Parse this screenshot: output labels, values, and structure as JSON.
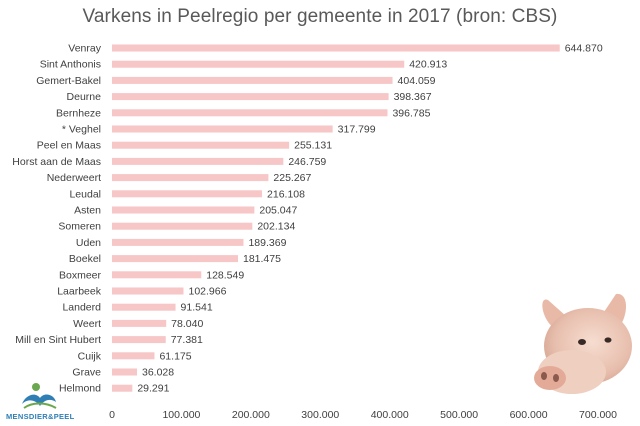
{
  "chart_data": {
    "type": "bar",
    "orientation": "horizontal",
    "title": "Varkens in Peelregio per gemeente in 2017 (bron: CBS)",
    "xlabel": "",
    "ylabel": "",
    "xlim": [
      0,
      700000
    ],
    "grid": false,
    "legend": "none",
    "bar_color": "#f7c6c6",
    "categories": [
      "Venray",
      "Sint Anthonis",
      "Gemert-Bakel",
      "Deurne",
      "Bernheze",
      "* Veghel",
      "Peel en Maas",
      "Horst aan de Maas",
      "Nederweert",
      "Leudal",
      "Asten",
      "Someren",
      "Uden",
      "Boekel",
      "Boxmeer",
      "Laarbeek",
      "Landerd",
      "Weert",
      "Mill en Sint Hubert",
      "Cuijk",
      "Grave",
      "Helmond"
    ],
    "values": [
      644870,
      420913,
      404059,
      398367,
      396785,
      317799,
      255131,
      246759,
      225267,
      216108,
      205047,
      202134,
      189369,
      181475,
      128549,
      102966,
      91541,
      78040,
      77381,
      61175,
      36028,
      29291
    ],
    "value_labels": [
      "644.870",
      "420.913",
      "404.059",
      "398.367",
      "396.785",
      "317.799",
      "255.131",
      "246.759",
      "225.267",
      "216.108",
      "205.047",
      "202.134",
      "189.369",
      "181.475",
      "128.549",
      "102.966",
      "91.541",
      "78.040",
      "77.381",
      "61.175",
      "36.028",
      "29.291"
    ],
    "tick_values": [
      0,
      100000,
      200000,
      300000,
      400000,
      500000,
      600000,
      700000
    ],
    "tick_labels": [
      "0",
      "100.000",
      "200.000",
      "300.000",
      "400.000",
      "500.000",
      "600.000",
      "700.000"
    ]
  },
  "logo": {
    "text": "MENSDIER&PEEL"
  },
  "decoration": {
    "pig_image": "pig-head-icon"
  }
}
